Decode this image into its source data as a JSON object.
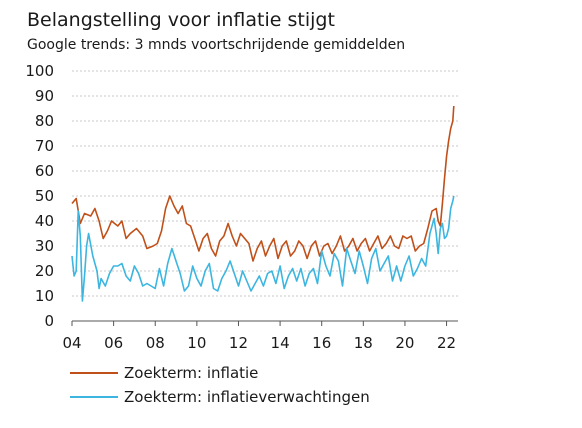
{
  "chart_data": {
    "type": "line",
    "title": "Belangstelling voor inflatie stijgt",
    "subtitle": "Google trends: 3 mnds voortschrijdende gemiddelden",
    "xlabel": "",
    "ylabel": "",
    "ylim": [
      0,
      100
    ],
    "y_ticks": [
      "0",
      "10",
      "20",
      "30",
      "40",
      "50",
      "60",
      "70",
      "80",
      "90",
      "100"
    ],
    "x_ticks": [
      "04",
      "06",
      "08",
      "10",
      "12",
      "14",
      "16",
      "18",
      "20",
      "22"
    ],
    "grid": "horizontal dotted",
    "legend_position": "bottom-left",
    "x_unit": "year (decimal)",
    "series": [
      {
        "name": "Zoekterm: inflatie",
        "color": "#c0501a",
        "points": [
          [
            2004.0,
            47
          ],
          [
            2004.2,
            49
          ],
          [
            2004.4,
            39
          ],
          [
            2004.6,
            43
          ],
          [
            2004.9,
            42
          ],
          [
            2005.1,
            45
          ],
          [
            2005.3,
            40
          ],
          [
            2005.5,
            33
          ],
          [
            2005.7,
            36
          ],
          [
            2005.9,
            40
          ],
          [
            2006.2,
            38
          ],
          [
            2006.4,
            40
          ],
          [
            2006.6,
            33
          ],
          [
            2006.8,
            35
          ],
          [
            2007.1,
            37
          ],
          [
            2007.4,
            34
          ],
          [
            2007.6,
            29
          ],
          [
            2007.9,
            30
          ],
          [
            2008.1,
            31
          ],
          [
            2008.3,
            36
          ],
          [
            2008.5,
            45
          ],
          [
            2008.7,
            50
          ],
          [
            2008.9,
            46
          ],
          [
            2009.1,
            43
          ],
          [
            2009.3,
            46
          ],
          [
            2009.5,
            39
          ],
          [
            2009.7,
            38
          ],
          [
            2009.9,
            33
          ],
          [
            2010.1,
            28
          ],
          [
            2010.3,
            33
          ],
          [
            2010.5,
            35
          ],
          [
            2010.7,
            29
          ],
          [
            2010.9,
            26
          ],
          [
            2011.1,
            32
          ],
          [
            2011.3,
            34
          ],
          [
            2011.5,
            39
          ],
          [
            2011.7,
            34
          ],
          [
            2011.9,
            30
          ],
          [
            2012.1,
            35
          ],
          [
            2012.3,
            33
          ],
          [
            2012.5,
            31
          ],
          [
            2012.7,
            24
          ],
          [
            2012.9,
            29
          ],
          [
            2013.1,
            32
          ],
          [
            2013.3,
            26
          ],
          [
            2013.5,
            30
          ],
          [
            2013.7,
            33
          ],
          [
            2013.9,
            25
          ],
          [
            2014.1,
            30
          ],
          [
            2014.3,
            32
          ],
          [
            2014.5,
            26
          ],
          [
            2014.7,
            28
          ],
          [
            2014.9,
            32
          ],
          [
            2015.1,
            30
          ],
          [
            2015.3,
            25
          ],
          [
            2015.5,
            30
          ],
          [
            2015.7,
            32
          ],
          [
            2015.9,
            26
          ],
          [
            2016.1,
            30
          ],
          [
            2016.3,
            31
          ],
          [
            2016.5,
            27
          ],
          [
            2016.7,
            30
          ],
          [
            2016.9,
            34
          ],
          [
            2017.1,
            28
          ],
          [
            2017.3,
            30
          ],
          [
            2017.5,
            33
          ],
          [
            2017.7,
            28
          ],
          [
            2017.9,
            31
          ],
          [
            2018.1,
            33
          ],
          [
            2018.3,
            28
          ],
          [
            2018.5,
            31
          ],
          [
            2018.7,
            34
          ],
          [
            2018.9,
            29
          ],
          [
            2019.1,
            31
          ],
          [
            2019.3,
            34
          ],
          [
            2019.5,
            30
          ],
          [
            2019.7,
            29
          ],
          [
            2019.9,
            34
          ],
          [
            2020.1,
            33
          ],
          [
            2020.3,
            34
          ],
          [
            2020.5,
            28
          ],
          [
            2020.7,
            30
          ],
          [
            2020.9,
            31
          ],
          [
            2021.1,
            37
          ],
          [
            2021.3,
            44
          ],
          [
            2021.5,
            45
          ],
          [
            2021.6,
            40
          ],
          [
            2021.7,
            38
          ],
          [
            2021.8,
            47
          ],
          [
            2021.9,
            57
          ],
          [
            2022.0,
            66
          ],
          [
            2022.1,
            72
          ],
          [
            2022.2,
            77
          ],
          [
            2022.3,
            80
          ],
          [
            2022.35,
            86
          ]
        ]
      },
      {
        "name": "Zoekterm: inflatieverwachtingen",
        "color": "#3cb6e0",
        "points": [
          [
            2004.0,
            26
          ],
          [
            2004.1,
            18
          ],
          [
            2004.2,
            20
          ],
          [
            2004.3,
            44
          ],
          [
            2004.4,
            34
          ],
          [
            2004.5,
            8
          ],
          [
            2004.6,
            18
          ],
          [
            2004.7,
            30
          ],
          [
            2004.8,
            35
          ],
          [
            2005.0,
            26
          ],
          [
            2005.2,
            20
          ],
          [
            2005.3,
            13
          ],
          [
            2005.4,
            17
          ],
          [
            2005.6,
            14
          ],
          [
            2005.8,
            19
          ],
          [
            2006.0,
            22
          ],
          [
            2006.2,
            22
          ],
          [
            2006.4,
            23
          ],
          [
            2006.6,
            18
          ],
          [
            2006.8,
            16
          ],
          [
            2007.0,
            22
          ],
          [
            2007.2,
            19
          ],
          [
            2007.4,
            14
          ],
          [
            2007.6,
            15
          ],
          [
            2007.8,
            14
          ],
          [
            2008.0,
            13
          ],
          [
            2008.2,
            21
          ],
          [
            2008.4,
            14
          ],
          [
            2008.6,
            23
          ],
          [
            2008.8,
            29
          ],
          [
            2009.0,
            24
          ],
          [
            2009.2,
            19
          ],
          [
            2009.4,
            12
          ],
          [
            2009.6,
            14
          ],
          [
            2009.8,
            22
          ],
          [
            2010.0,
            17
          ],
          [
            2010.2,
            14
          ],
          [
            2010.4,
            20
          ],
          [
            2010.6,
            23
          ],
          [
            2010.8,
            13
          ],
          [
            2011.0,
            12
          ],
          [
            2011.2,
            17
          ],
          [
            2011.4,
            20
          ],
          [
            2011.6,
            24
          ],
          [
            2011.8,
            19
          ],
          [
            2012.0,
            14
          ],
          [
            2012.2,
            20
          ],
          [
            2012.4,
            16
          ],
          [
            2012.6,
            12
          ],
          [
            2012.8,
            15
          ],
          [
            2013.0,
            18
          ],
          [
            2013.2,
            14
          ],
          [
            2013.4,
            19
          ],
          [
            2013.6,
            20
          ],
          [
            2013.8,
            15
          ],
          [
            2014.0,
            22
          ],
          [
            2014.2,
            13
          ],
          [
            2014.4,
            18
          ],
          [
            2014.6,
            21
          ],
          [
            2014.8,
            16
          ],
          [
            2015.0,
            21
          ],
          [
            2015.2,
            14
          ],
          [
            2015.4,
            19
          ],
          [
            2015.6,
            21
          ],
          [
            2015.8,
            15
          ],
          [
            2016.0,
            28
          ],
          [
            2016.2,
            22
          ],
          [
            2016.4,
            18
          ],
          [
            2016.6,
            27
          ],
          [
            2016.8,
            24
          ],
          [
            2017.0,
            14
          ],
          [
            2017.2,
            29
          ],
          [
            2017.4,
            24
          ],
          [
            2017.6,
            19
          ],
          [
            2017.8,
            28
          ],
          [
            2018.0,
            22
          ],
          [
            2018.2,
            15
          ],
          [
            2018.4,
            25
          ],
          [
            2018.6,
            29
          ],
          [
            2018.8,
            20
          ],
          [
            2019.0,
            23
          ],
          [
            2019.2,
            26
          ],
          [
            2019.4,
            16
          ],
          [
            2019.6,
            22
          ],
          [
            2019.8,
            16
          ],
          [
            2020.0,
            22
          ],
          [
            2020.2,
            26
          ],
          [
            2020.4,
            18
          ],
          [
            2020.6,
            21
          ],
          [
            2020.8,
            25
          ],
          [
            2021.0,
            22
          ],
          [
            2021.2,
            35
          ],
          [
            2021.4,
            41
          ],
          [
            2021.5,
            35
          ],
          [
            2021.6,
            27
          ],
          [
            2021.7,
            37
          ],
          [
            2021.8,
            39
          ],
          [
            2021.9,
            33
          ],
          [
            2022.0,
            34
          ],
          [
            2022.1,
            37
          ],
          [
            2022.2,
            45
          ],
          [
            2022.3,
            48
          ],
          [
            2022.35,
            50
          ]
        ]
      }
    ]
  }
}
